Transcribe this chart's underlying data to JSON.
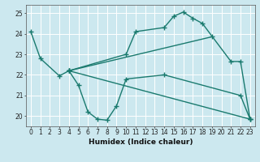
{
  "bg_color": "#cce8ef",
  "grid_color": "#ffffff",
  "line_color": "#1a7a6e",
  "line_width": 1.0,
  "marker": "+",
  "marker_size": 4,
  "marker_ew": 1.0,
  "xlim": [
    -0.5,
    23.5
  ],
  "ylim": [
    19.5,
    25.4
  ],
  "yticks": [
    20,
    21,
    22,
    23,
    24,
    25
  ],
  "xticks": [
    0,
    1,
    2,
    3,
    4,
    5,
    6,
    7,
    8,
    9,
    10,
    11,
    12,
    13,
    14,
    15,
    16,
    17,
    18,
    19,
    20,
    21,
    22,
    23
  ],
  "xlabel": "Humidex (Indice chaleur)",
  "xlabel_fontsize": 6.5,
  "tick_fontsize": 5.5,
  "series": [
    {
      "x": [
        0,
        1,
        3,
        4,
        5,
        6,
        7,
        8,
        9,
        10,
        14,
        22,
        23
      ],
      "y": [
        24.1,
        22.8,
        21.95,
        22.2,
        21.5,
        20.2,
        19.85,
        19.8,
        20.5,
        21.8,
        22.0,
        21.0,
        19.85
      ]
    },
    {
      "x": [
        4,
        10,
        11,
        14,
        15,
        16,
        17,
        18,
        21,
        22,
        23
      ],
      "y": [
        22.2,
        23.0,
        24.1,
        24.3,
        24.85,
        25.05,
        24.75,
        24.5,
        22.65,
        22.65,
        19.85
      ]
    },
    {
      "x": [
        4,
        23
      ],
      "y": [
        22.2,
        19.85
      ]
    },
    {
      "x": [
        4,
        19
      ],
      "y": [
        22.2,
        23.85
      ]
    }
  ]
}
